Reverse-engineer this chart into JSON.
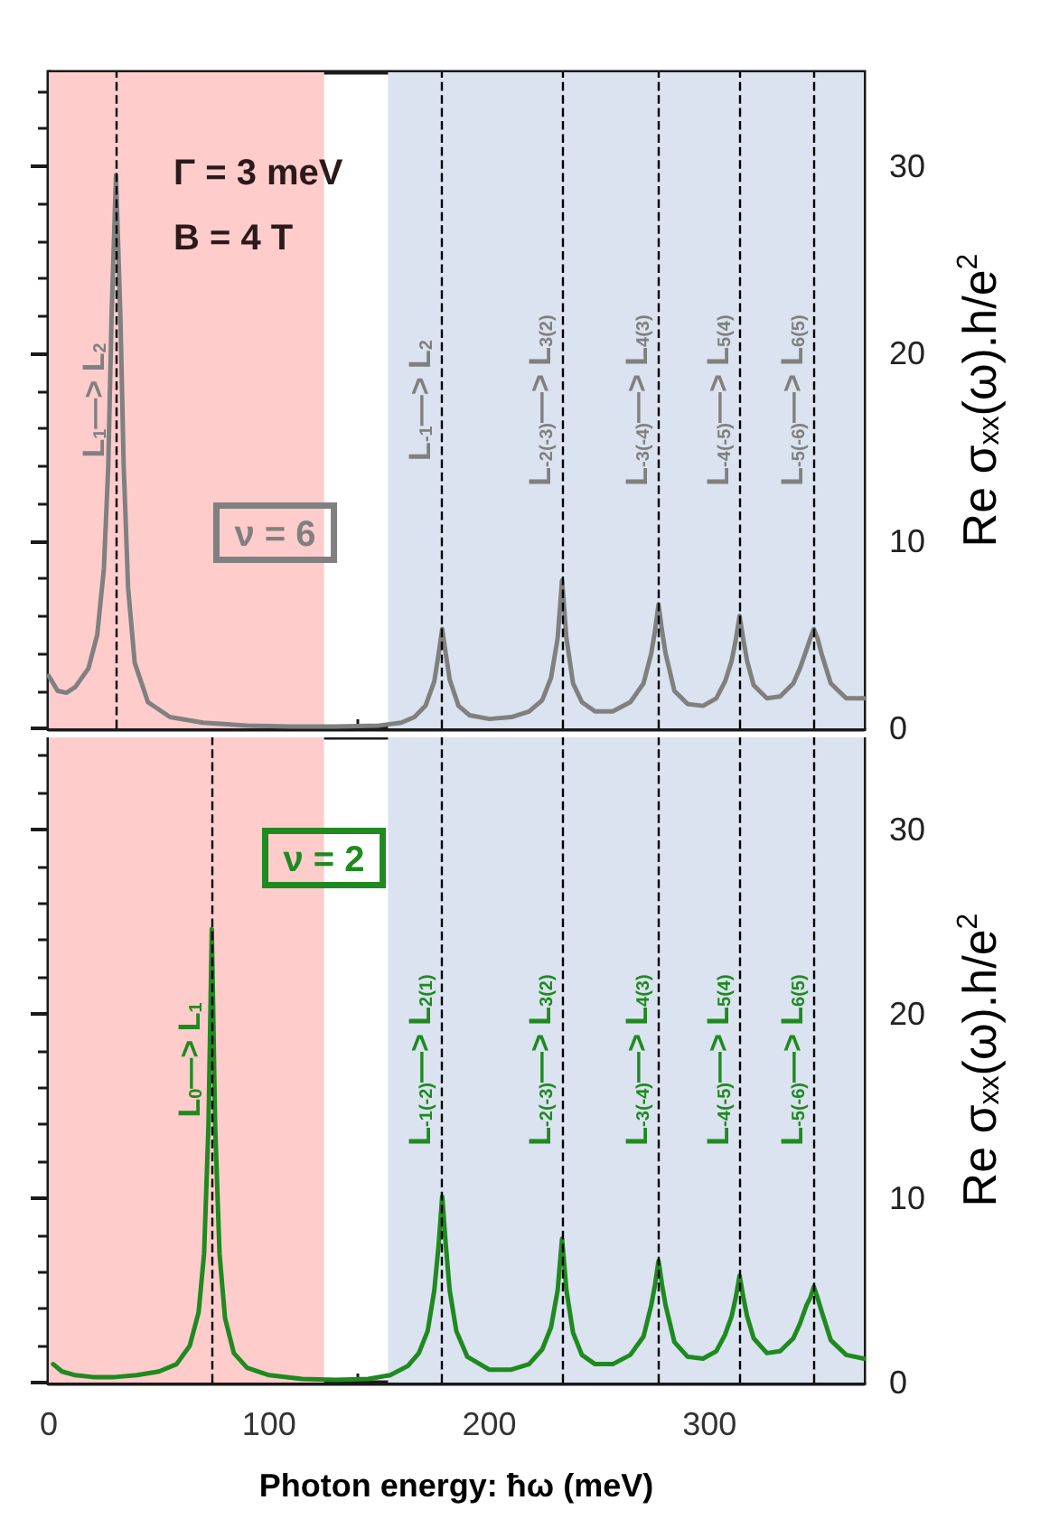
{
  "chart_data": [
    {
      "type": "line",
      "ylabel": "Re σ$_{xx}$(ω).h/e$^{2}$",
      "annotations": [
        "Γ = 3 meV",
        "B = 4 T"
      ],
      "xlim": [
        0,
        370
      ],
      "xticks": [
        0,
        100,
        200,
        300
      ],
      "ylim": [
        0,
        35
      ],
      "yticks": [
        0,
        10,
        20,
        30
      ],
      "tick_labels": "y",
      "marker": "none",
      "x": [
        0,
        4,
        8,
        12,
        18,
        22,
        25,
        27,
        28.5,
        30.5,
        32.5,
        34,
        36,
        39,
        45,
        55,
        70,
        90,
        110,
        130,
        150,
        160,
        166,
        171,
        175,
        177,
        178.6,
        180.2,
        182,
        186,
        191,
        200,
        210,
        218,
        224,
        228,
        231,
        233,
        235,
        238,
        242,
        248,
        256,
        264,
        270,
        273.5,
        275.2,
        276.8,
        278.4,
        280,
        284,
        290,
        297,
        303,
        307,
        310,
        312,
        313.6,
        315.2,
        317,
        320,
        326,
        332,
        338,
        341,
        344,
        345.7,
        347.3,
        349,
        351,
        355,
        362,
        370
      ],
      "series": [
        {
          "name": "ν = 6",
          "color": "#808080",
          "values": [
            2.8,
            2.0,
            1.9,
            2.2,
            3.2,
            5.0,
            8.5,
            14,
            22,
            29.5,
            22,
            14,
            7.5,
            3.5,
            1.4,
            0.6,
            0.3,
            0.15,
            0.1,
            0.1,
            0.15,
            0.3,
            0.6,
            1.2,
            2.5,
            4.0,
            5.3,
            4.0,
            2.6,
            1.2,
            0.7,
            0.5,
            0.6,
            0.9,
            1.5,
            2.7,
            4.8,
            7.9,
            4.8,
            2.4,
            1.4,
            0.9,
            0.9,
            1.4,
            2.4,
            4.0,
            5.2,
            6.6,
            5.2,
            4.0,
            2.0,
            1.3,
            1.2,
            1.6,
            2.5,
            3.6,
            4.8,
            6.0,
            4.8,
            3.6,
            2.3,
            1.6,
            1.7,
            2.4,
            3.2,
            4.2,
            4.8,
            5.3,
            4.8,
            3.9,
            2.4,
            1.6,
            1.6
          ]
        }
      ],
      "ref_lines": [
        {
          "axis": "x",
          "value": 30.5,
          "label": "L$_{1}$—> L$_{2}$",
          "color": "#000000",
          "line_style": "dashed"
        },
        {
          "axis": "x",
          "value": 178.6,
          "label": "L$_{-1}$—> L$_{2}$",
          "color": "#000000",
          "line_style": "dashed"
        },
        {
          "axis": "x",
          "value": 233,
          "label": "L$_{-2(-3)}$—> L$_{3(2)}$",
          "color": "#000000",
          "line_style": "dashed"
        },
        {
          "axis": "x",
          "value": 276.8,
          "label": "L$_{-3(-4)}$—> L$_{4(3)}$",
          "color": "#000000",
          "line_style": "dashed"
        },
        {
          "axis": "x",
          "value": 313.6,
          "label": "L$_{-4(-5)}$—> L$_{5(4)}$",
          "color": "#000000",
          "line_style": "dashed"
        },
        {
          "axis": "x",
          "value": 347.3,
          "label": "L$_{-5(-6)}$—> L$_{6(5)}$",
          "color": "#000000",
          "line_style": "dashed"
        }
      ],
      "bands": [
        {
          "axis": "x",
          "from": 0,
          "to": 125,
          "color": "#ffcccc"
        },
        {
          "axis": "x",
          "from": 154,
          "to": 370,
          "color": "#dae3ef"
        }
      ]
    },
    {
      "type": "line",
      "xlabel": "Photon energy: ħω (meV)",
      "ylabel": "Re σ$_{xx}$(ω).h/e$^{2}$",
      "xlim": [
        0,
        370
      ],
      "xticks": [
        0,
        100,
        200,
        300
      ],
      "ylim": [
        0,
        35
      ],
      "yticks": [
        0,
        10,
        20,
        30
      ],
      "marker": "none",
      "x": [
        2,
        6,
        12,
        20,
        30,
        40,
        50,
        58,
        64,
        68,
        70.5,
        72.5,
        74,
        75.5,
        77.5,
        80,
        84,
        90,
        100,
        115,
        130,
        145,
        155,
        163,
        168,
        172,
        175,
        177,
        178.6,
        180.2,
        182,
        185,
        190,
        200,
        210,
        218,
        224,
        228,
        231,
        233,
        235,
        238,
        242,
        248,
        256,
        264,
        270,
        273.5,
        275.2,
        276.8,
        278.4,
        280,
        284,
        290,
        297,
        303,
        307,
        310,
        312,
        313.6,
        315.2,
        317,
        320,
        326,
        332,
        338,
        341,
        344,
        345.7,
        347.3,
        349,
        351,
        355,
        362,
        370
      ],
      "series": [
        {
          "name": "ν = 2",
          "color": "#1f8a1f",
          "values": [
            1.0,
            0.6,
            0.4,
            0.3,
            0.3,
            0.4,
            0.6,
            1.0,
            2.0,
            3.8,
            7,
            14,
            24.6,
            14,
            7,
            3.5,
            1.6,
            0.8,
            0.4,
            0.2,
            0.15,
            0.2,
            0.4,
            0.9,
            1.6,
            2.8,
            5,
            7.5,
            10.1,
            7.5,
            5,
            2.8,
            1.4,
            0.7,
            0.7,
            1.0,
            1.8,
            3.0,
            5.0,
            7.8,
            5.0,
            2.7,
            1.5,
            1.0,
            1.0,
            1.5,
            2.5,
            4.2,
            5.3,
            6.6,
            5.3,
            4.2,
            2.2,
            1.4,
            1.3,
            1.7,
            2.6,
            3.6,
            4.7,
            5.8,
            4.7,
            3.6,
            2.4,
            1.6,
            1.7,
            2.4,
            3.2,
            4.2,
            4.6,
            5.2,
            4.6,
            3.8,
            2.3,
            1.5,
            1.3
          ]
        }
      ],
      "ref_lines": [
        {
          "axis": "x",
          "value": 74,
          "label": "L$_{0}$—> L$_{1}$",
          "color": "#000000",
          "line_style": "dashed"
        },
        {
          "axis": "x",
          "value": 178.6,
          "label": "L$_{-1(-2)}$—> L$_{2(1)}$",
          "color": "#000000",
          "line_style": "dashed"
        },
        {
          "axis": "x",
          "value": 233,
          "label": "L$_{-2(-3)}$—> L$_{3(2)}$",
          "color": "#000000",
          "line_style": "dashed"
        },
        {
          "axis": "x",
          "value": 276.8,
          "label": "L$_{-3(-4)}$—> L$_{4(3)}$",
          "color": "#000000",
          "line_style": "dashed"
        },
        {
          "axis": "x",
          "value": 313.6,
          "label": "L$_{-4(-5)}$—> L$_{5(4)}$",
          "color": "#000000",
          "line_style": "dashed"
        },
        {
          "axis": "x",
          "value": 347.3,
          "label": "L$_{-5(-6)}$—> L$_{6(5)}$",
          "color": "#000000",
          "line_style": "dashed"
        }
      ],
      "bands": [
        {
          "axis": "x",
          "from": 0,
          "to": 125,
          "color": "#ffcccc"
        },
        {
          "axis": "x",
          "from": 154,
          "to": 370,
          "color": "#dae3ef"
        }
      ]
    }
  ]
}
